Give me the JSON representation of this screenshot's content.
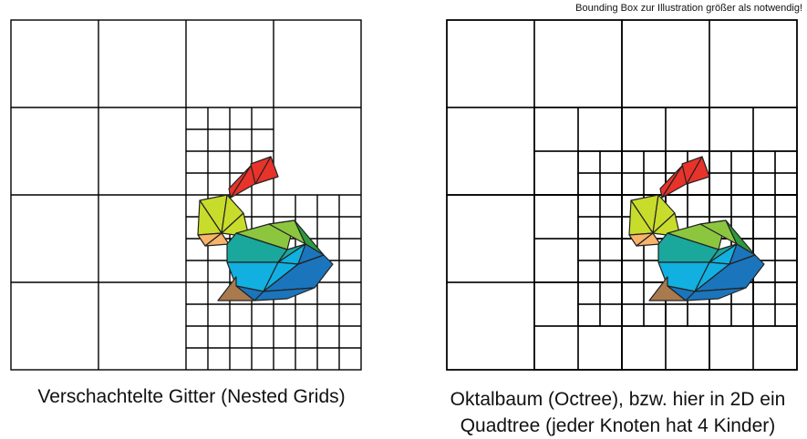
{
  "left_panel": {
    "caption": "Verschachtelte Gitter (Nested Grids)"
  },
  "right_panel": {
    "note": "Bounding Box zur Illustration größer als notwendig!",
    "caption_line1": "Oktalbaum (Octree), bzw. hier in 2D ein",
    "caption_line2": "Quadtree (jeder Knoten hat 4 Kinder)"
  },
  "colors": {
    "grid_line": "#000000",
    "red": "#e8332a",
    "yellow_green": "#c8dc2c",
    "orange": "#f7b46a",
    "light_green": "#8cc63f",
    "dark_green": "#2e9a3e",
    "teal": "#1aa79c",
    "cyan": "#11b0e0",
    "blue": "#1b75bc",
    "brown": "#a87a4e"
  }
}
